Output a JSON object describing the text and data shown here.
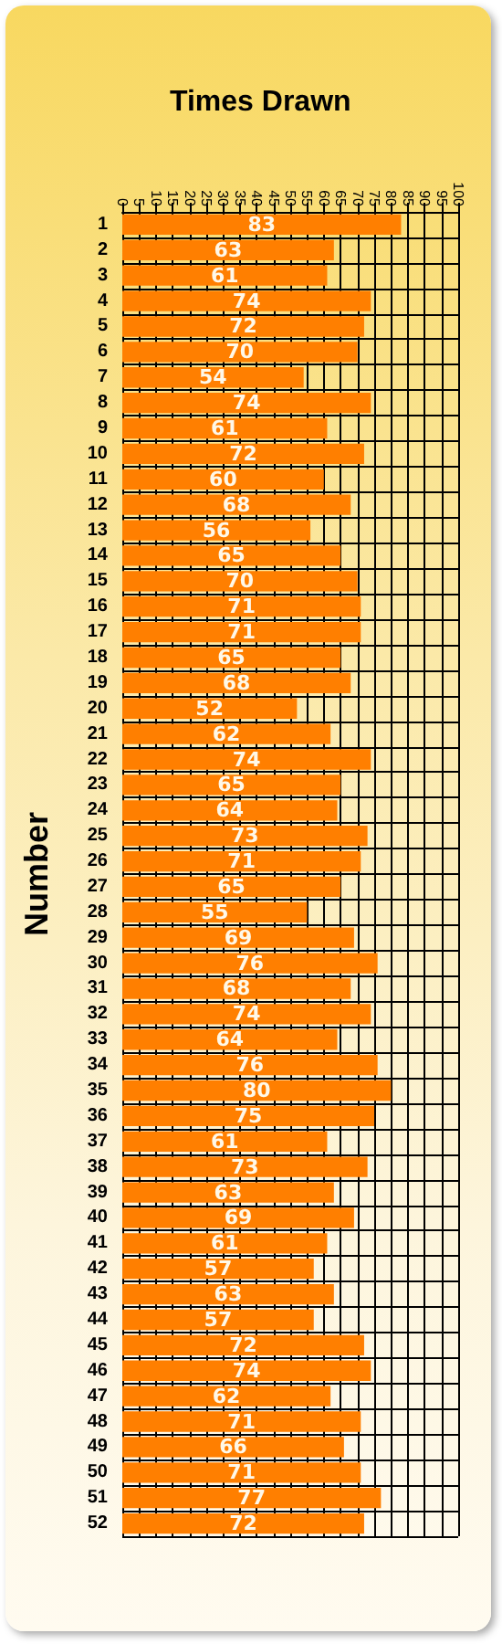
{
  "chart_data": {
    "type": "bar",
    "orientation": "horizontal",
    "title": "Times Drawn",
    "ylabel": "Number",
    "categories": [
      "1",
      "2",
      "3",
      "4",
      "5",
      "6",
      "7",
      "8",
      "9",
      "10",
      "11",
      "12",
      "13",
      "14",
      "15",
      "16",
      "17",
      "18",
      "19",
      "20",
      "21",
      "22",
      "23",
      "24",
      "25",
      "26",
      "27",
      "28",
      "29",
      "30",
      "31",
      "32",
      "33",
      "34",
      "35",
      "36",
      "37",
      "38",
      "39",
      "40",
      "41",
      "42",
      "43",
      "44",
      "45",
      "46",
      "47",
      "48",
      "49",
      "50",
      "51",
      "52"
    ],
    "values": [
      83,
      63,
      61,
      74,
      72,
      70,
      54,
      74,
      61,
      72,
      60,
      68,
      56,
      65,
      70,
      71,
      71,
      65,
      68,
      52,
      62,
      74,
      65,
      64,
      73,
      71,
      65,
      55,
      69,
      76,
      68,
      74,
      64,
      76,
      80,
      75,
      61,
      73,
      63,
      69,
      61,
      57,
      63,
      57,
      72,
      74,
      62,
      71,
      66,
      71,
      77,
      72
    ],
    "color": "#ff7f00",
    "xlim": [
      0,
      100
    ],
    "xticks": [
      0,
      5,
      10,
      15,
      20,
      25,
      30,
      35,
      40,
      45,
      50,
      55,
      60,
      65,
      70,
      75,
      80,
      85,
      90,
      95,
      100
    ],
    "grid": true,
    "data_labels": true
  }
}
